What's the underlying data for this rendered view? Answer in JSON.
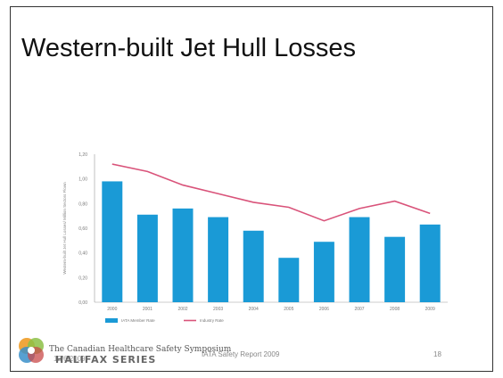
{
  "slide": {
    "title": "Western-built Jet Hull Losses",
    "footer_source": "IATA Safety Report  2009",
    "page_number": "18",
    "date_overlay": "12/6/2009",
    "logo": {
      "line1": "The Canadian Healthcare Safety Symposium",
      "line2": "HALIFAX SERIES"
    }
  },
  "chart_data": {
    "type": "bar",
    "categories": [
      "2000",
      "2001",
      "2002",
      "2003",
      "2004",
      "2005",
      "2006",
      "2007",
      "2008",
      "2009"
    ],
    "series": [
      {
        "name": "IATA Member Rate",
        "type": "bar",
        "color": "#1a9ad6",
        "values": [
          0.98,
          0.71,
          0.76,
          0.69,
          0.58,
          0.36,
          0.49,
          0.69,
          0.53,
          0.63
        ]
      },
      {
        "name": "Industry Rate",
        "type": "line",
        "color": "#d9537a",
        "values": [
          1.12,
          1.06,
          0.95,
          0.88,
          0.81,
          0.77,
          0.66,
          0.76,
          0.82,
          0.72
        ]
      }
    ],
    "ylabel": "Western-built Jet Hull Losses/ Million Sectors Flown",
    "yticks": [
      "0,00",
      "0,20",
      "0,40",
      "0,60",
      "0,80",
      "1,00",
      "1,20"
    ],
    "ylim": [
      0,
      1.2
    ],
    "grid": false,
    "legend_position": "bottom-left"
  }
}
